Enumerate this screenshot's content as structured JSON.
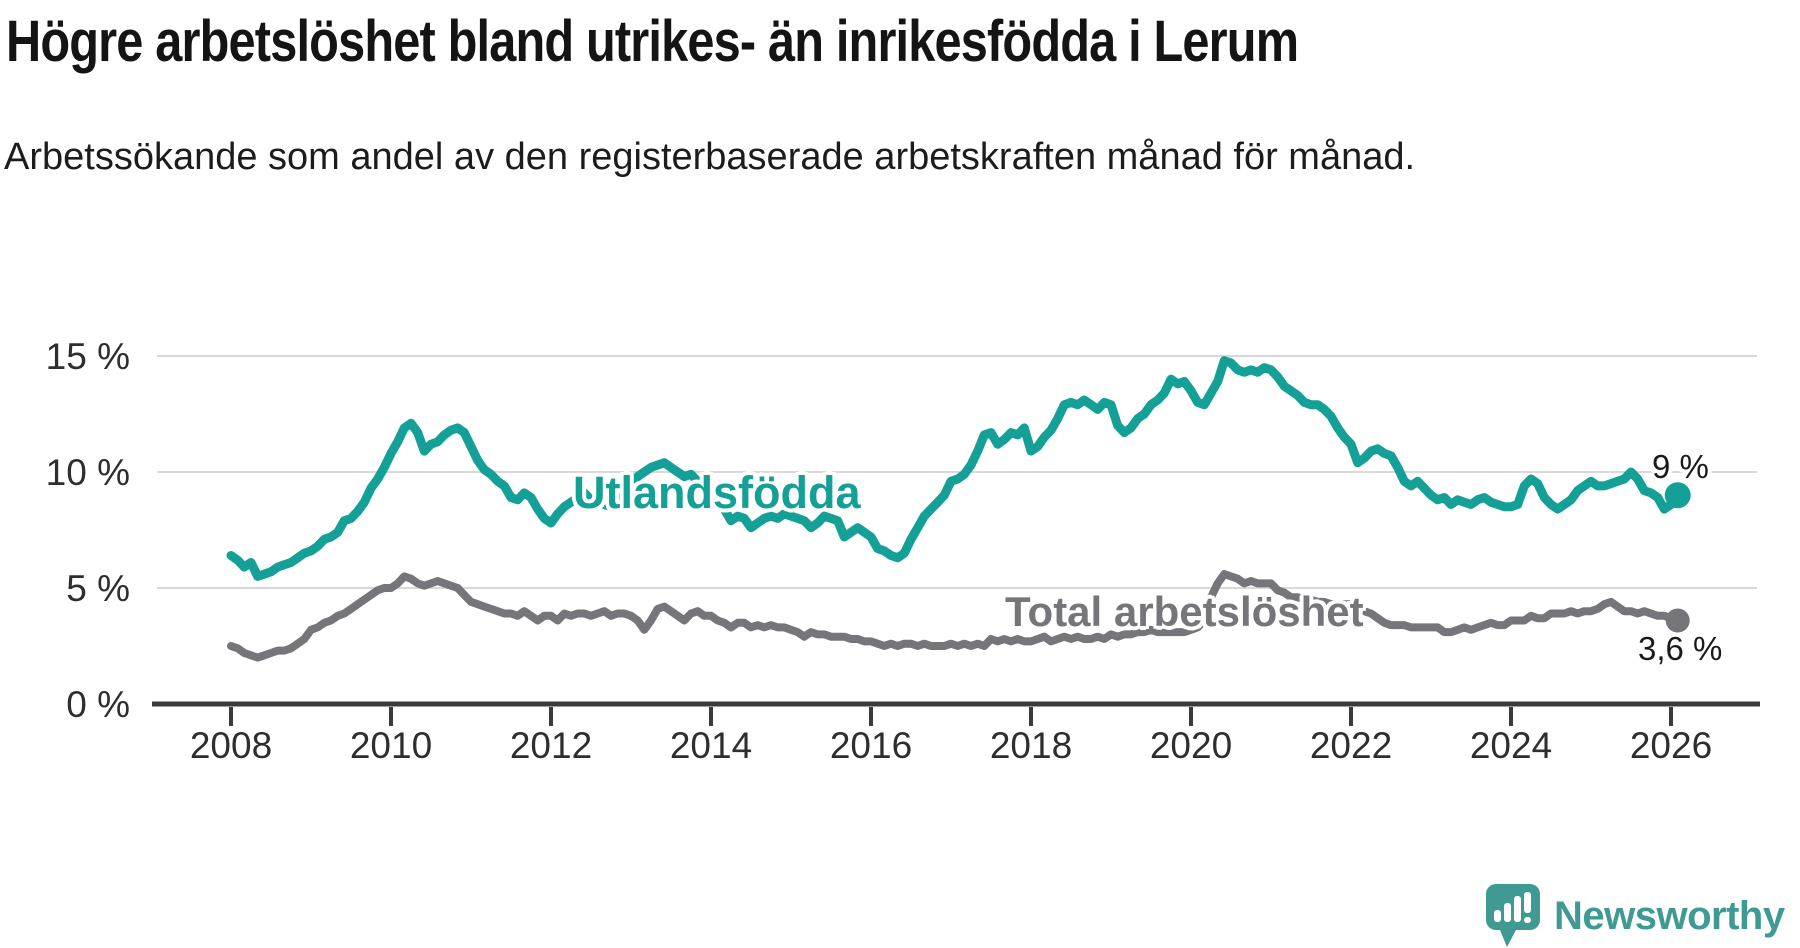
{
  "header": {
    "title": "Högre arbetslöshet bland utrikes- än inrikesfödda i Lerum",
    "subtitle": "Arbetssökande som andel av den registerbaserade arbetskraften månad för månad."
  },
  "chart_data": {
    "type": "line",
    "title": "Högre arbetslöshet bland utrikes- än inrikesfödda i Lerum",
    "frequency": "monthly",
    "x_start": "2008-01",
    "x_end": "2026-02",
    "xlabel": "",
    "ylabel": "",
    "ylim": [
      0,
      16
    ],
    "grid": "horizontal",
    "axis_color": "#3a3a3a",
    "grid_color": "#d9d9d9",
    "x_ticks": [
      {
        "label": "2008",
        "year": 2008
      },
      {
        "label": "2010",
        "year": 2010
      },
      {
        "label": "2012",
        "year": 2012
      },
      {
        "label": "2014",
        "year": 2014
      },
      {
        "label": "2016",
        "year": 2016
      },
      {
        "label": "2018",
        "year": 2018
      },
      {
        "label": "2020",
        "year": 2020
      },
      {
        "label": "2022",
        "year": 2022
      },
      {
        "label": "2024",
        "year": 2024
      },
      {
        "label": "2026",
        "year": 2026
      }
    ],
    "y_ticks": [
      {
        "label": "0 %",
        "value": 0
      },
      {
        "label": "5 %",
        "value": 5
      },
      {
        "label": "10 %",
        "value": 10
      },
      {
        "label": "15 %",
        "value": 15
      }
    ],
    "series": [
      {
        "name": "Utlandsfödda",
        "color": "#14a096",
        "end_label": "9 %",
        "end_value": 9.0,
        "values": [
          6.4,
          6.2,
          5.9,
          6.1,
          5.5,
          5.6,
          5.7,
          5.9,
          6.0,
          6.1,
          6.3,
          6.5,
          6.6,
          6.8,
          7.1,
          7.2,
          7.4,
          7.9,
          8.0,
          8.3,
          8.7,
          9.3,
          9.7,
          10.2,
          10.8,
          11.3,
          11.9,
          12.1,
          11.7,
          10.9,
          11.2,
          11.3,
          11.6,
          11.8,
          11.9,
          11.7,
          11.1,
          10.5,
          10.1,
          9.9,
          9.6,
          9.4,
          8.9,
          8.8,
          9.1,
          8.9,
          8.4,
          8.0,
          7.8,
          8.2,
          8.5,
          8.7,
          8.9,
          9.1,
          8.8,
          8.9,
          8.6,
          8.5,
          8.8,
          9.0,
          9.4,
          9.8,
          10.0,
          10.2,
          10.3,
          10.4,
          10.2,
          10.0,
          9.8,
          9.9,
          9.6,
          9.3,
          9.0,
          8.7,
          8.4,
          7.9,
          8.1,
          8.0,
          7.6,
          7.8,
          8.0,
          8.1,
          8.0,
          8.2,
          8.1,
          8.0,
          7.9,
          7.6,
          7.8,
          8.1,
          8.0,
          7.9,
          7.2,
          7.4,
          7.6,
          7.4,
          7.2,
          6.7,
          6.6,
          6.4,
          6.3,
          6.5,
          7.1,
          7.6,
          8.1,
          8.4,
          8.7,
          9.0,
          9.6,
          9.7,
          9.9,
          10.3,
          10.9,
          11.6,
          11.7,
          11.2,
          11.4,
          11.7,
          11.6,
          11.9,
          10.9,
          11.1,
          11.5,
          11.8,
          12.3,
          12.9,
          13.0,
          12.9,
          13.1,
          12.9,
          12.7,
          13.0,
          12.9,
          12.0,
          11.7,
          11.9,
          12.3,
          12.5,
          12.9,
          13.1,
          13.4,
          14.0,
          13.8,
          13.9,
          13.5,
          13.0,
          12.9,
          13.4,
          13.9,
          14.8,
          14.7,
          14.4,
          14.3,
          14.4,
          14.3,
          14.5,
          14.4,
          14.1,
          13.7,
          13.5,
          13.3,
          13.0,
          12.9,
          12.9,
          12.7,
          12.4,
          11.9,
          11.5,
          11.2,
          10.4,
          10.6,
          10.9,
          11.0,
          10.8,
          10.7,
          10.2,
          9.6,
          9.4,
          9.6,
          9.3,
          9.0,
          8.8,
          8.9,
          8.6,
          8.8,
          8.7,
          8.6,
          8.8,
          8.9,
          8.7,
          8.6,
          8.5,
          8.5,
          8.6,
          9.4,
          9.7,
          9.5,
          8.9,
          8.6,
          8.4,
          8.6,
          8.8,
          9.2,
          9.4,
          9.6,
          9.4,
          9.4,
          9.5,
          9.6,
          9.7,
          10.0,
          9.7,
          9.2,
          9.1,
          8.9,
          8.4,
          8.6,
          9.0
        ]
      },
      {
        "name": "Total arbetslöshet",
        "color": "#76757a",
        "end_label": "3,6 %",
        "end_value": 3.6,
        "values": [
          2.5,
          2.4,
          2.2,
          2.1,
          2.0,
          2.1,
          2.2,
          2.3,
          2.3,
          2.4,
          2.6,
          2.8,
          3.2,
          3.3,
          3.5,
          3.6,
          3.8,
          3.9,
          4.1,
          4.3,
          4.5,
          4.7,
          4.9,
          5.0,
          5.0,
          5.2,
          5.5,
          5.4,
          5.2,
          5.1,
          5.2,
          5.3,
          5.2,
          5.1,
          5.0,
          4.7,
          4.4,
          4.3,
          4.2,
          4.1,
          4.0,
          3.9,
          3.9,
          3.8,
          4.0,
          3.8,
          3.6,
          3.8,
          3.8,
          3.6,
          3.9,
          3.8,
          3.9,
          3.9,
          3.8,
          3.9,
          4.0,
          3.8,
          3.9,
          3.9,
          3.8,
          3.6,
          3.2,
          3.6,
          4.1,
          4.2,
          4.0,
          3.8,
          3.6,
          3.9,
          4.0,
          3.8,
          3.8,
          3.6,
          3.5,
          3.3,
          3.5,
          3.5,
          3.3,
          3.4,
          3.3,
          3.4,
          3.3,
          3.3,
          3.2,
          3.1,
          2.9,
          3.1,
          3.0,
          3.0,
          2.9,
          2.9,
          2.9,
          2.8,
          2.8,
          2.7,
          2.7,
          2.6,
          2.5,
          2.6,
          2.5,
          2.6,
          2.6,
          2.5,
          2.6,
          2.5,
          2.5,
          2.5,
          2.6,
          2.5,
          2.6,
          2.5,
          2.6,
          2.5,
          2.8,
          2.7,
          2.8,
          2.7,
          2.8,
          2.7,
          2.7,
          2.8,
          2.9,
          2.7,
          2.8,
          2.9,
          2.8,
          2.9,
          2.8,
          2.8,
          2.9,
          2.8,
          3.0,
          2.9,
          3.0,
          3.0,
          3.1,
          3.1,
          3.2,
          3.1,
          3.1,
          3.1,
          3.1,
          3.1,
          3.2,
          3.3,
          3.6,
          4.6,
          5.2,
          5.6,
          5.5,
          5.4,
          5.2,
          5.3,
          5.2,
          5.2,
          5.2,
          4.9,
          4.8,
          4.6,
          4.6,
          4.5,
          4.5,
          4.4,
          4.4,
          4.3,
          4.3,
          4.3,
          4.3,
          4.1,
          4.0,
          3.9,
          3.7,
          3.5,
          3.4,
          3.4,
          3.4,
          3.3,
          3.3,
          3.3,
          3.3,
          3.3,
          3.1,
          3.1,
          3.2,
          3.3,
          3.2,
          3.3,
          3.4,
          3.5,
          3.4,
          3.4,
          3.6,
          3.6,
          3.6,
          3.8,
          3.7,
          3.7,
          3.9,
          3.9,
          3.9,
          4.0,
          3.9,
          4.0,
          4.0,
          4.1,
          4.3,
          4.4,
          4.2,
          4.0,
          4.0,
          3.9,
          4.0,
          3.9,
          3.8,
          3.8,
          3.7,
          3.6
        ]
      }
    ]
  },
  "footer": {
    "brand": "Newsworthy",
    "brand_color": "#3f9a93",
    "logo_icon": "newsworthy-speech-bubble-chart-icon"
  }
}
